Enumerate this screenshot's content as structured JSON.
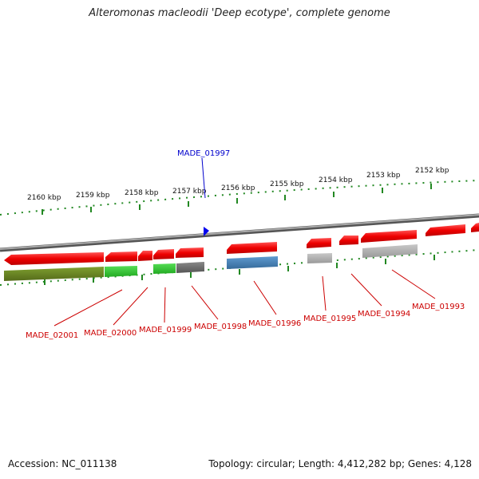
{
  "title": "Alteromonas macleodii 'Deep ecotype', complete genome",
  "footer": {
    "accession": "Accession: NC_011138",
    "summary": "Topology: circular; Length: 4,412,282 bp; Genes: 4,128"
  },
  "kbp_labels": [
    "2160 kbp",
    "2159 kbp",
    "2158 kbp",
    "2157 kbp",
    "2156 kbp",
    "2155 kbp",
    "2154 kbp",
    "2153 kbp",
    "2152 kbp"
  ],
  "gene_labels_bottom": [
    "MADE_02001",
    "MADE_02000",
    "MADE_01999",
    "MADE_01998",
    "MADE_01996",
    "MADE_01995",
    "MADE_01994",
    "MADE_01993"
  ],
  "gene_label_top": "MADE_01997",
  "colors": {
    "gene_red": "#ee1111",
    "label_red": "#cc0000",
    "label_blue": "#0000cc",
    "tick_green": "#228822",
    "olive": "#6b8e23",
    "light_green": "#33cc33",
    "steel_blue": "#4682b4",
    "gray": "#b0b0b0",
    "dark_gray": "#666666"
  }
}
